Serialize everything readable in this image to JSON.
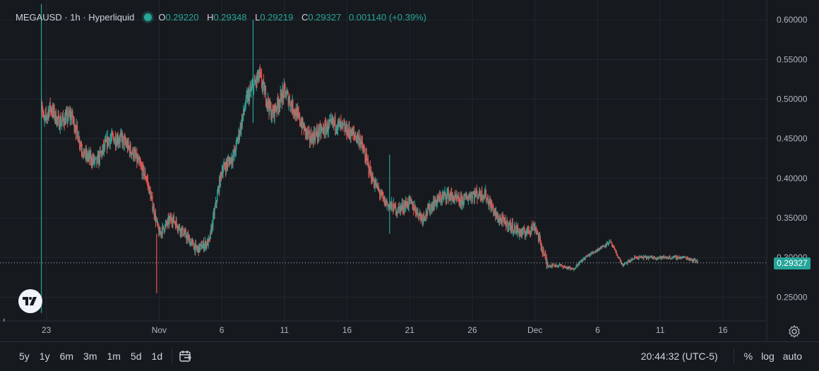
{
  "header": {
    "symbol": "MEGAUSD · 1h · Hyperliquid",
    "ohlc": [
      {
        "label": "O",
        "value": "0.29220"
      },
      {
        "label": "H",
        "value": "0.29348"
      },
      {
        "label": "L",
        "value": "0.29219"
      },
      {
        "label": "C",
        "value": "0.29327"
      }
    ],
    "change": "0.001140 (+0.39%)"
  },
  "colors": {
    "up": "#26a69a",
    "down": "#ef5350",
    "background": "#161a1e",
    "grid": "#232730",
    "text": "#d1d4dc"
  },
  "chart_data": {
    "type": "candlestick",
    "title": "MEGAUSD · 1h · Hyperliquid",
    "ylim": [
      0.22,
      0.625
    ],
    "yticks": [
      "0.60000",
      "0.55000",
      "0.50000",
      "0.45000",
      "0.40000",
      "0.35000",
      "0.30000",
      "0.25000"
    ],
    "ytick_values": [
      0.6,
      0.55,
      0.5,
      0.45,
      0.4,
      0.35,
      0.3,
      0.25
    ],
    "xticks": [
      {
        "label": "23",
        "day": 23
      },
      {
        "label": "Nov",
        "day": 32
      },
      {
        "label": "6",
        "day": 37
      },
      {
        "label": "11",
        "day": 42
      },
      {
        "label": "16",
        "day": 47
      },
      {
        "label": "21",
        "day": 52
      },
      {
        "label": "26",
        "day": 57
      },
      {
        "label": "Dec",
        "day": 62
      },
      {
        "label": "6",
        "day": 67
      },
      {
        "label": "11",
        "day": 72
      },
      {
        "label": "16",
        "day": 77
      }
    ],
    "xlim_days": [
      19.3,
      80.5
    ],
    "last_price": "0.29327",
    "last_price_value": 0.29327,
    "approx_close_path": [
      [
        22.6,
        0.5
      ],
      [
        22.8,
        0.47
      ],
      [
        23.3,
        0.49
      ],
      [
        24.0,
        0.47
      ],
      [
        25.0,
        0.48
      ],
      [
        26.0,
        0.43
      ],
      [
        27.0,
        0.42
      ],
      [
        28.0,
        0.45
      ],
      [
        29.0,
        0.45
      ],
      [
        30.0,
        0.43
      ],
      [
        31.0,
        0.4
      ],
      [
        32.0,
        0.33
      ],
      [
        33.0,
        0.35
      ],
      [
        34.0,
        0.33
      ],
      [
        35.0,
        0.31
      ],
      [
        36.0,
        0.32
      ],
      [
        37.0,
        0.41
      ],
      [
        38.0,
        0.43
      ],
      [
        39.0,
        0.5
      ],
      [
        40.0,
        0.53
      ],
      [
        41.0,
        0.48
      ],
      [
        42.0,
        0.51
      ],
      [
        43.0,
        0.48
      ],
      [
        44.0,
        0.45
      ],
      [
        45.0,
        0.46
      ],
      [
        46.0,
        0.47
      ],
      [
        47.0,
        0.46
      ],
      [
        48.0,
        0.45
      ],
      [
        49.0,
        0.4
      ],
      [
        50.0,
        0.37
      ],
      [
        51.0,
        0.36
      ],
      [
        52.0,
        0.37
      ],
      [
        53.0,
        0.35
      ],
      [
        54.0,
        0.37
      ],
      [
        55.0,
        0.38
      ],
      [
        56.0,
        0.37
      ],
      [
        57.0,
        0.38
      ],
      [
        58.0,
        0.38
      ],
      [
        59.0,
        0.35
      ],
      [
        60.0,
        0.34
      ],
      [
        61.0,
        0.33
      ],
      [
        62.0,
        0.34
      ],
      [
        63.0,
        0.29
      ],
      [
        64.0,
        0.29
      ],
      [
        65.0,
        0.285
      ],
      [
        66.0,
        0.3
      ],
      [
        67.0,
        0.31
      ],
      [
        68.0,
        0.32
      ],
      [
        69.0,
        0.29
      ],
      [
        70.0,
        0.3
      ],
      [
        71.0,
        0.3
      ],
      [
        72.0,
        0.3
      ],
      [
        73.0,
        0.3
      ],
      [
        74.0,
        0.3
      ],
      [
        75.0,
        0.295
      ]
    ],
    "notable_wicks": [
      {
        "day": 22.6,
        "low": 0.23,
        "high": 0.62
      },
      {
        "day": 31.8,
        "low": 0.255,
        "high": 0.33
      },
      {
        "day": 39.5,
        "low": 0.47,
        "high": 0.6
      },
      {
        "day": 50.4,
        "low": 0.33,
        "high": 0.43
      }
    ]
  },
  "bottom_bar": {
    "ranges": [
      "5y",
      "1y",
      "6m",
      "3m",
      "1m",
      "5d",
      "1d"
    ],
    "time": "20:44:32 (UTC-5)",
    "percent": "%",
    "log": "log",
    "auto": "auto"
  }
}
